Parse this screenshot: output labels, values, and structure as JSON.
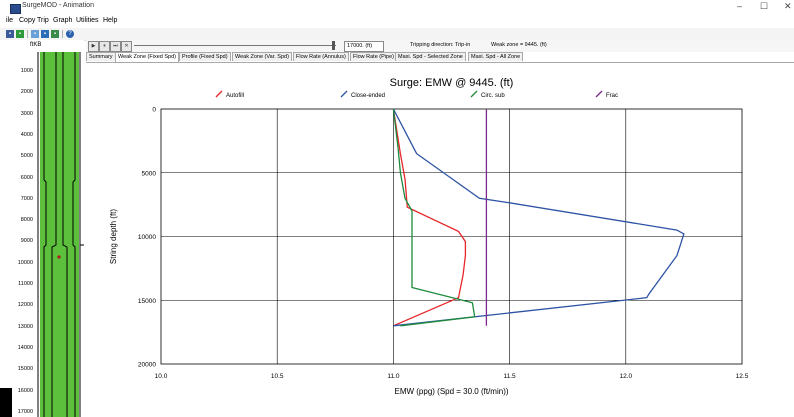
{
  "window": {
    "title": "SurgeMOD - Animation",
    "minimize": "–",
    "maximize": "☐",
    "close": "✕"
  },
  "menu": [
    "ile",
    "Copy",
    "Trip",
    "Graph",
    "Utilities",
    "Help"
  ],
  "toolbar_icons": [
    "save-icon",
    "export-icon",
    "chart-icon",
    "print-icon",
    "paint-icon",
    "help-icon"
  ],
  "left_panel": {
    "header": "ftKB",
    "depth_labels": [
      "1000",
      "2000",
      "3000",
      "4000",
      "5000",
      "6000",
      "7000",
      "8000",
      "9000",
      "10000",
      "11000",
      "12000",
      "13000",
      "14000",
      "15000",
      "16000",
      "17000"
    ],
    "colors": {
      "annulus": "#5cc03c",
      "pipe": "#5cc03c",
      "outline": "#000000"
    }
  },
  "animation_bar": {
    "controls": [
      "▶",
      "⏸",
      "⏭",
      "✕"
    ],
    "depth_value": "17000. (ft)",
    "direction": "Tripping direction: Trip-in",
    "weak_zone": "Weak zone = 9445. (ft)"
  },
  "tabs": [
    "Summary",
    "Weak Zone (Fixed Spd)",
    "Profile (Fixed Spd)",
    "Weak Zone (Var. Spd)",
    "Flow Rate (Annulus)",
    "Flow Rate (Pipe)",
    "Maxi. Spd - Selected Zone",
    "Maxi. Spd - All Zone"
  ],
  "active_tab": 1,
  "chart_data": {
    "type": "line",
    "title": "Surge: EMW @ 9445. (ft)",
    "xlabel": "EMW (ppg) (Spd = 30.0 (ft/min))",
    "ylabel": "String depth (ft)",
    "xlim": [
      10.0,
      12.5
    ],
    "ylim": [
      0,
      20000
    ],
    "y_inverted": true,
    "grid": true,
    "legend_position": "top",
    "x_ticks": [
      "10.0",
      "10.5",
      "11.0",
      "11.5",
      "12.0",
      "12.5"
    ],
    "y_ticks": [
      "0",
      "5000",
      "10000",
      "15000",
      "20000"
    ],
    "series": [
      {
        "name": "Autofill",
        "color": "#e8262a",
        "points": [
          [
            11.0,
            17000
          ],
          [
            11.28,
            14800
          ],
          [
            11.3,
            13000
          ],
          [
            11.31,
            11500
          ],
          [
            11.31,
            10400
          ],
          [
            11.28,
            9600
          ],
          [
            11.06,
            7700
          ],
          [
            11.05,
            5500
          ],
          [
            11.03,
            3500
          ],
          [
            11.0,
            0
          ]
        ]
      },
      {
        "name": "Close-ended",
        "color": "#2d53a4",
        "points": [
          [
            11.0,
            17000
          ],
          [
            12.09,
            14800
          ],
          [
            12.1,
            14500
          ],
          [
            12.22,
            11500
          ],
          [
            12.25,
            9800
          ],
          [
            12.22,
            9500
          ],
          [
            11.48,
            7300
          ],
          [
            11.37,
            7000
          ],
          [
            11.1,
            3500
          ],
          [
            11.0,
            0
          ]
        ]
      },
      {
        "name": "Circ. sub",
        "color": "#1e8a3c",
        "points": [
          [
            11.03,
            17000
          ],
          [
            11.35,
            16300
          ],
          [
            11.34,
            15200
          ],
          [
            11.08,
            14000
          ],
          [
            11.08,
            13000
          ],
          [
            11.08,
            10000
          ],
          [
            11.08,
            8000
          ],
          [
            11.05,
            7000
          ],
          [
            11.03,
            5000
          ],
          [
            11.02,
            3000
          ],
          [
            11.0,
            0
          ]
        ]
      },
      {
        "name": "Frac",
        "color": "#7a2c8c",
        "points": [
          [
            11.4,
            0
          ],
          [
            11.4,
            17000
          ]
        ]
      }
    ]
  }
}
